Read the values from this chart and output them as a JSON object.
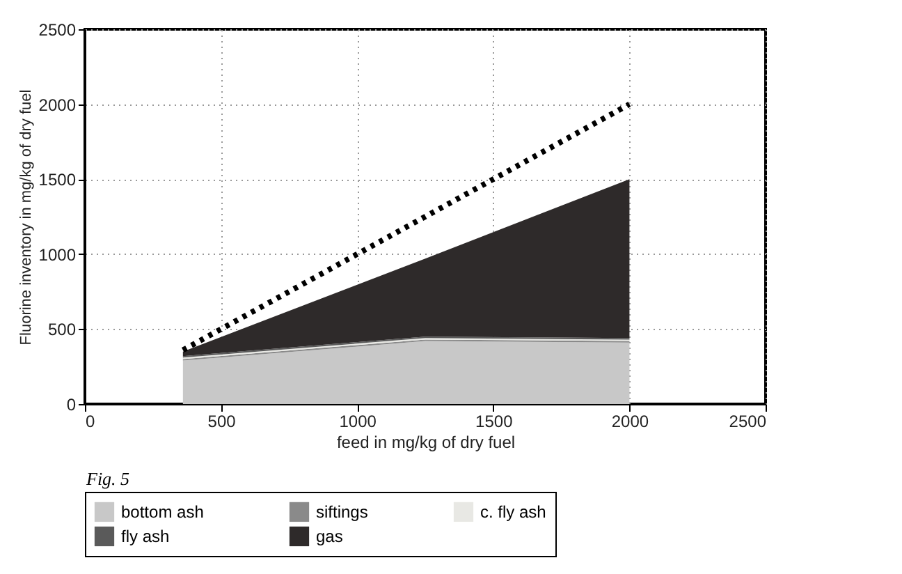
{
  "chart_data": {
    "type": "area",
    "stacked": true,
    "xlabel": "feed in mg/kg of dry fuel",
    "ylabel": "Fluorine inventory in mg/kg of dry fuel",
    "annotations": [
      "Fig. 5"
    ],
    "x": [
      360,
      1250,
      2000
    ],
    "xlim": [
      0,
      2500
    ],
    "xticks": [
      0,
      500,
      1000,
      1500,
      2000,
      2500
    ],
    "ylim": [
      0,
      2500
    ],
    "yticks": [
      0,
      500,
      1000,
      1500,
      2000,
      2500
    ],
    "grid": true,
    "legend": "bottom",
    "series": [
      {
        "name": "bottom ash",
        "color": "#c8c8c8",
        "values": [
          290,
          420,
          410
        ]
      },
      {
        "name": "siftings",
        "color": "#8a8a8a",
        "values": [
          10,
          10,
          10
        ]
      },
      {
        "name": "c. fly ash",
        "color": "#e8e8e4",
        "values": [
          10,
          10,
          10
        ]
      },
      {
        "name": "fly ash",
        "color": "#5a5a5a",
        "values": [
          10,
          10,
          10
        ]
      },
      {
        "name": "gas",
        "color": "#2e2a2a",
        "values": [
          30,
          520,
          1060
        ]
      },
      {
        "type": "line",
        "color": "#000000",
        "line_style": "dotted",
        "x": [
          360,
          2000
        ],
        "values": [
          360,
          2000
        ]
      }
    ]
  }
}
